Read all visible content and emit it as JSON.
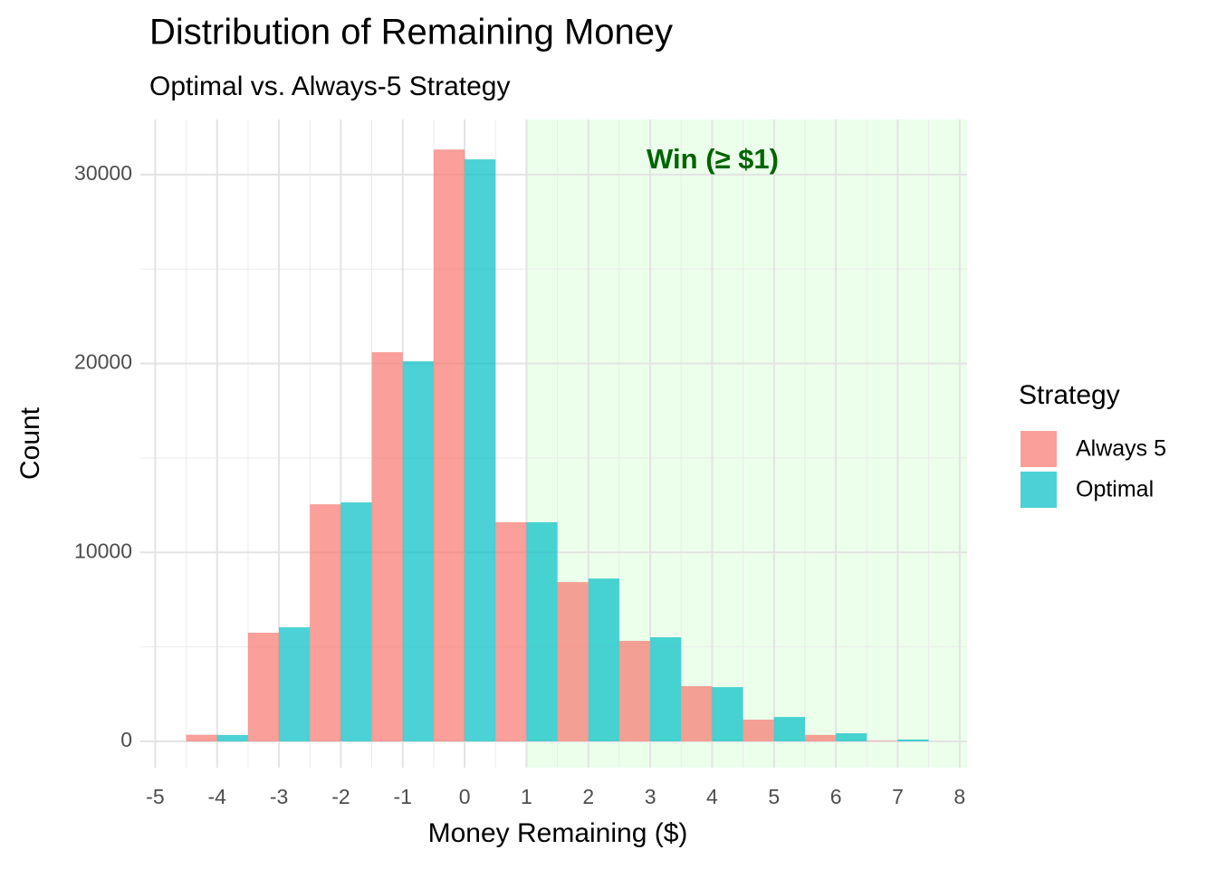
{
  "chart_data": {
    "type": "bar",
    "title": "Distribution of Remaining Money",
    "subtitle": "Optimal vs. Always-5 Strategy",
    "x_label": "Money Remaining ($)",
    "y_label": "Count",
    "legend_title": "Strategy",
    "legend_position": "right",
    "grid": true,
    "x": [
      -4,
      -3,
      -2,
      -1,
      0,
      1,
      2,
      3,
      4,
      5,
      6,
      7
    ],
    "series": [
      {
        "name": "Always 5",
        "color": "#F8766D",
        "values": [
          350,
          5750,
          12550,
          20600,
          31330,
          11600,
          8430,
          5320,
          2920,
          1150,
          340,
          30
        ]
      },
      {
        "name": "Optimal",
        "color": "#00BFC4",
        "values": [
          340,
          6040,
          12650,
          20120,
          30810,
          11600,
          8620,
          5510,
          2870,
          1290,
          430,
          100
        ]
      }
    ],
    "highlight": {
      "from": 1,
      "label": "Win (≥ $1)",
      "color": "#ccffcc",
      "label_color": "#006400"
    },
    "xlim": [
      -5.24,
      8.12
    ],
    "xticks": [
      -5,
      -4,
      -3,
      -2,
      -1,
      0,
      1,
      2,
      3,
      4,
      5,
      6,
      7,
      8
    ],
    "ylim": [
      -1390,
      32920
    ],
    "yticks": [
      0,
      10000,
      20000,
      30000
    ]
  }
}
